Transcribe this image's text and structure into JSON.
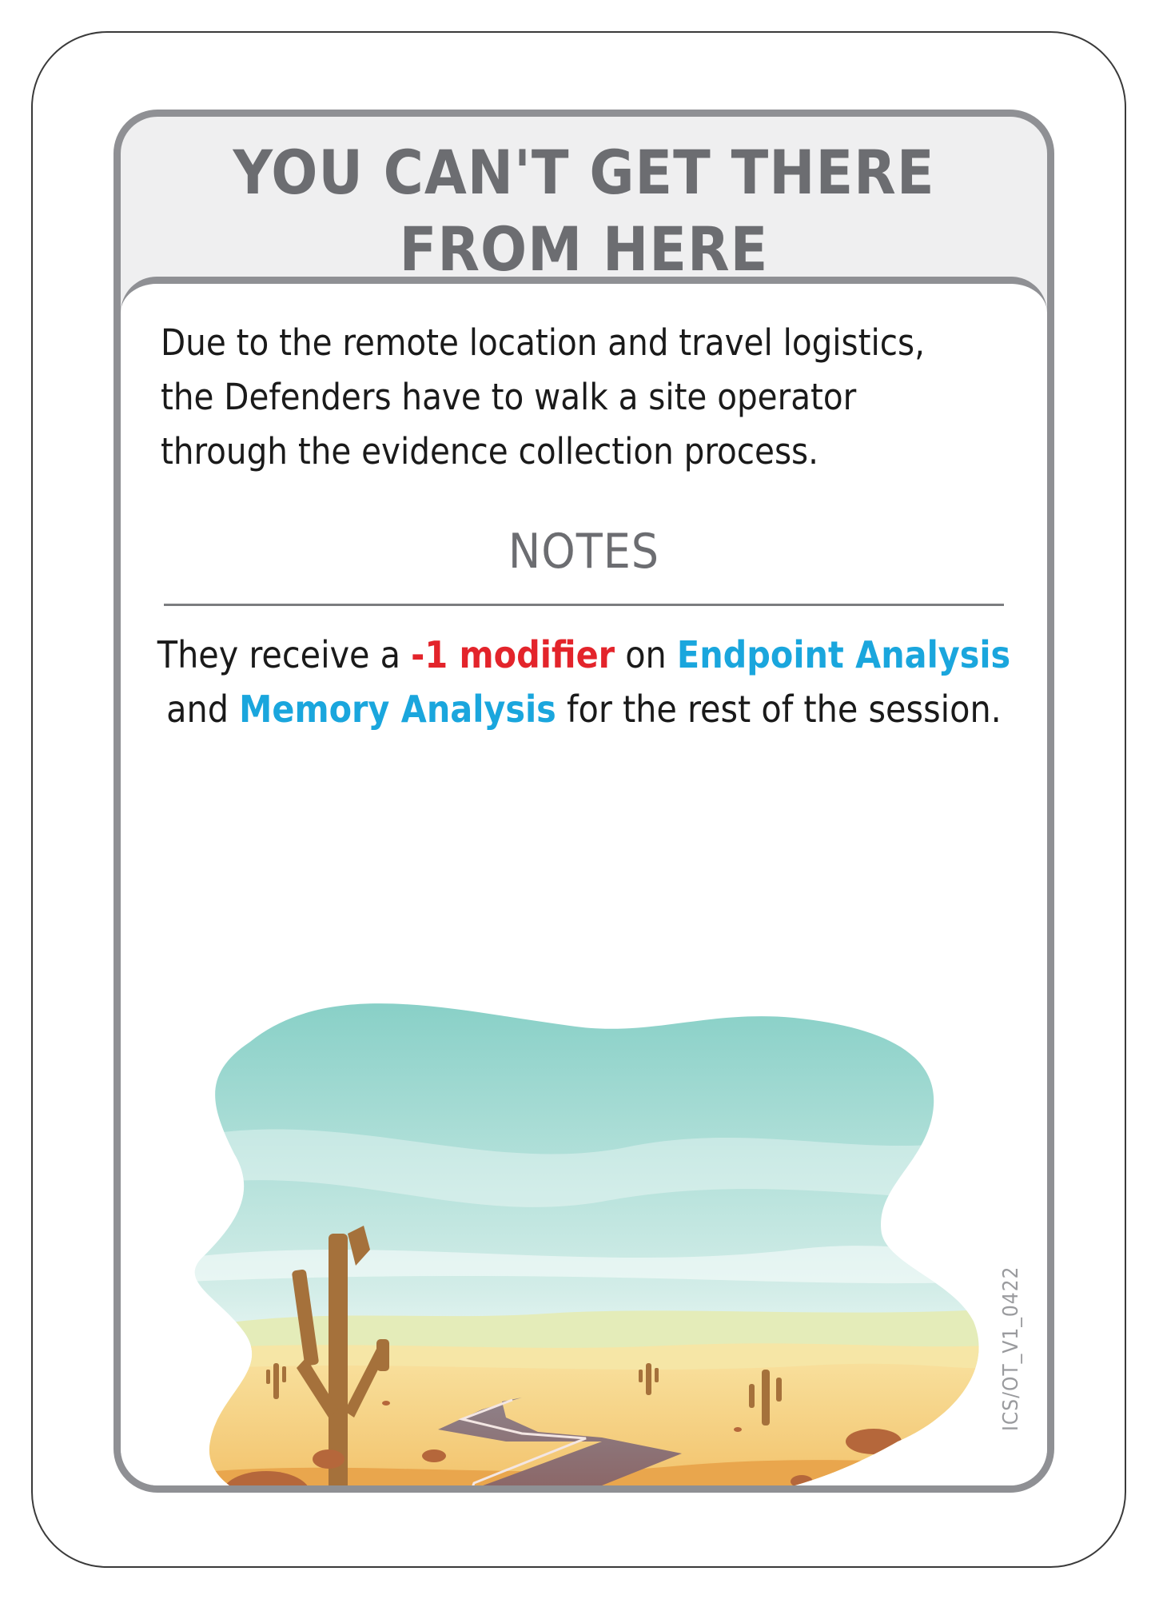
{
  "card": {
    "title_line1": "You Can't Get There",
    "title_line2": "From Here",
    "description": {
      "line1": "Due to the remote location and travel logistics,",
      "line2": "the Defenders have to walk a site operator",
      "line3": "through the evidence collection process."
    },
    "notes_heading": "NOTES",
    "notes": {
      "part1": "They receive a ",
      "modifier": "-1 modifier",
      "part2": " on ",
      "skill1": "Endpoint Analysis",
      "part3": "and ",
      "skill2": "Memory Analysis",
      "part4": " for the rest of the session."
    },
    "card_code": "ICS/OT_V1_0422"
  },
  "colors": {
    "frame_gray": "#8f9094",
    "title_gray": "#6c6d71",
    "modifier_red": "#e3242b",
    "skill_blue": "#1aa6dd"
  }
}
